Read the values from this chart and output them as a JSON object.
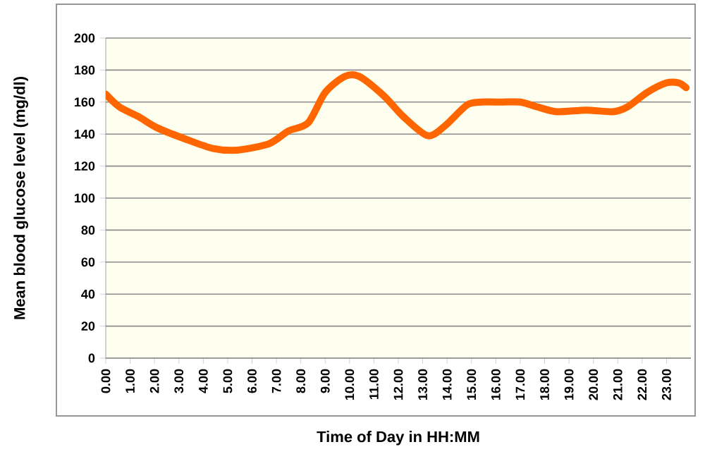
{
  "chart_data": {
    "type": "line",
    "xlabel": "Time of Day in HH:MM",
    "ylabel": "Mean blood glucose level (mg/dl)",
    "x": [
      0,
      0.56,
      1.33,
      2.1,
      3.25,
      4.4,
      5.4,
      6.7,
      7.5,
      8.3,
      9.0,
      9.8,
      10.4,
      11.4,
      12.2,
      13.2,
      13.9,
      14.8,
      15.4,
      16.2,
      17.0,
      17.7,
      18.5,
      19.7,
      20.8,
      21.4,
      22.2,
      23.0,
      23.5,
      23.8
    ],
    "series": [
      {
        "color": "#ff6600",
        "values": [
          165,
          157,
          151,
          144,
          137,
          131,
          130,
          134,
          142,
          147,
          166,
          176,
          176,
          164,
          151,
          139,
          145,
          158,
          160,
          160,
          160,
          157,
          154,
          155,
          154,
          157,
          166,
          172,
          172,
          169
        ]
      }
    ],
    "xlim": [
      0,
      24
    ],
    "ylim": [
      0,
      200
    ],
    "yticks": [
      0,
      20,
      40,
      60,
      80,
      100,
      120,
      140,
      160,
      180,
      200
    ],
    "xticks": [
      {
        "value": 0,
        "label": "0.00"
      },
      {
        "value": 1,
        "label": "1.00"
      },
      {
        "value": 2,
        "label": "2.00"
      },
      {
        "value": 3,
        "label": "3.00"
      },
      {
        "value": 4,
        "label": "4.00"
      },
      {
        "value": 5,
        "label": "5.00"
      },
      {
        "value": 6,
        "label": "6.00"
      },
      {
        "value": 7,
        "label": "7.00"
      },
      {
        "value": 8,
        "label": "8.00"
      },
      {
        "value": 9,
        "label": "9.00"
      },
      {
        "value": 10,
        "label": "10.00"
      },
      {
        "value": 11,
        "label": "11.00"
      },
      {
        "value": 12,
        "label": "12.00"
      },
      {
        "value": 13,
        "label": "13.00"
      },
      {
        "value": 14,
        "label": "14.00"
      },
      {
        "value": 15,
        "label": "15.00"
      },
      {
        "value": 16,
        "label": "16.00"
      },
      {
        "value": 17,
        "label": "17.00"
      },
      {
        "value": 18,
        "label": "18.00"
      },
      {
        "value": 19,
        "label": "19.00"
      },
      {
        "value": 20,
        "label": "20.00"
      },
      {
        "value": 21,
        "label": "21.00"
      },
      {
        "value": 22,
        "label": "22.00"
      },
      {
        "value": 23,
        "label": "23.00"
      }
    ],
    "grid": "y",
    "marker": "none",
    "line_style": "solid"
  }
}
